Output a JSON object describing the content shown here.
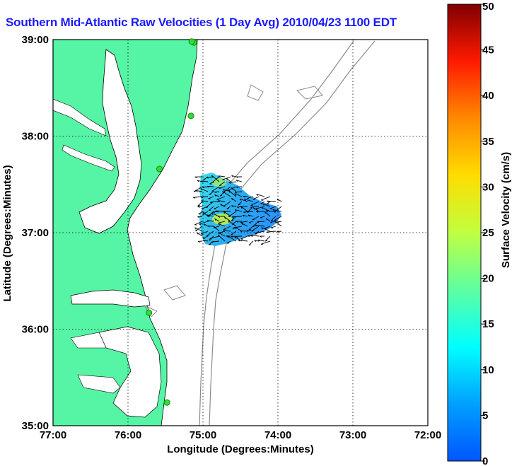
{
  "title": "Southern Mid-Atlantic Raw Velocities (1 Day Avg) 2010/04/23 1100 EDT",
  "x_axis": {
    "label": "Longitude (Degrees:Minutes)",
    "ticks": [
      "77:00",
      "76:00",
      "75:00",
      "74:00",
      "73:00",
      "72:00"
    ]
  },
  "y_axis": {
    "label": "Latitude (Degrees:Minutes)",
    "ticks": [
      "39:00",
      "38:00",
      "37:00",
      "36:00",
      "35:00"
    ]
  },
  "colorbar": {
    "label": "Surface Velocity (cm/s)",
    "ticks": [
      "50",
      "45",
      "40",
      "35",
      "30",
      "25",
      "20",
      "15",
      "10",
      "5",
      "0"
    ],
    "min": 0,
    "max": 50,
    "colormap": "jet"
  },
  "colors": {
    "land": "#55f5a5",
    "coast_line": "#000000",
    "bathymetry_contour": "#8c8c8c",
    "station_marker": "#33dd33",
    "grid": "#000000",
    "title": "#1a1aff"
  },
  "extent": {
    "lon_west": -77,
    "lon_east": -72,
    "lat_south": 35,
    "lat_north": 39
  },
  "stations": [
    {
      "lon": -75.12,
      "lat": 38.97
    },
    {
      "lon": -75.15,
      "lat": 38.98
    },
    {
      "lon": -75.16,
      "lat": 38.21
    },
    {
      "lon": -75.58,
      "lat": 37.66
    },
    {
      "lon": -75.72,
      "lat": 36.17
    },
    {
      "lon": -75.48,
      "lat": 35.24
    }
  ]
}
